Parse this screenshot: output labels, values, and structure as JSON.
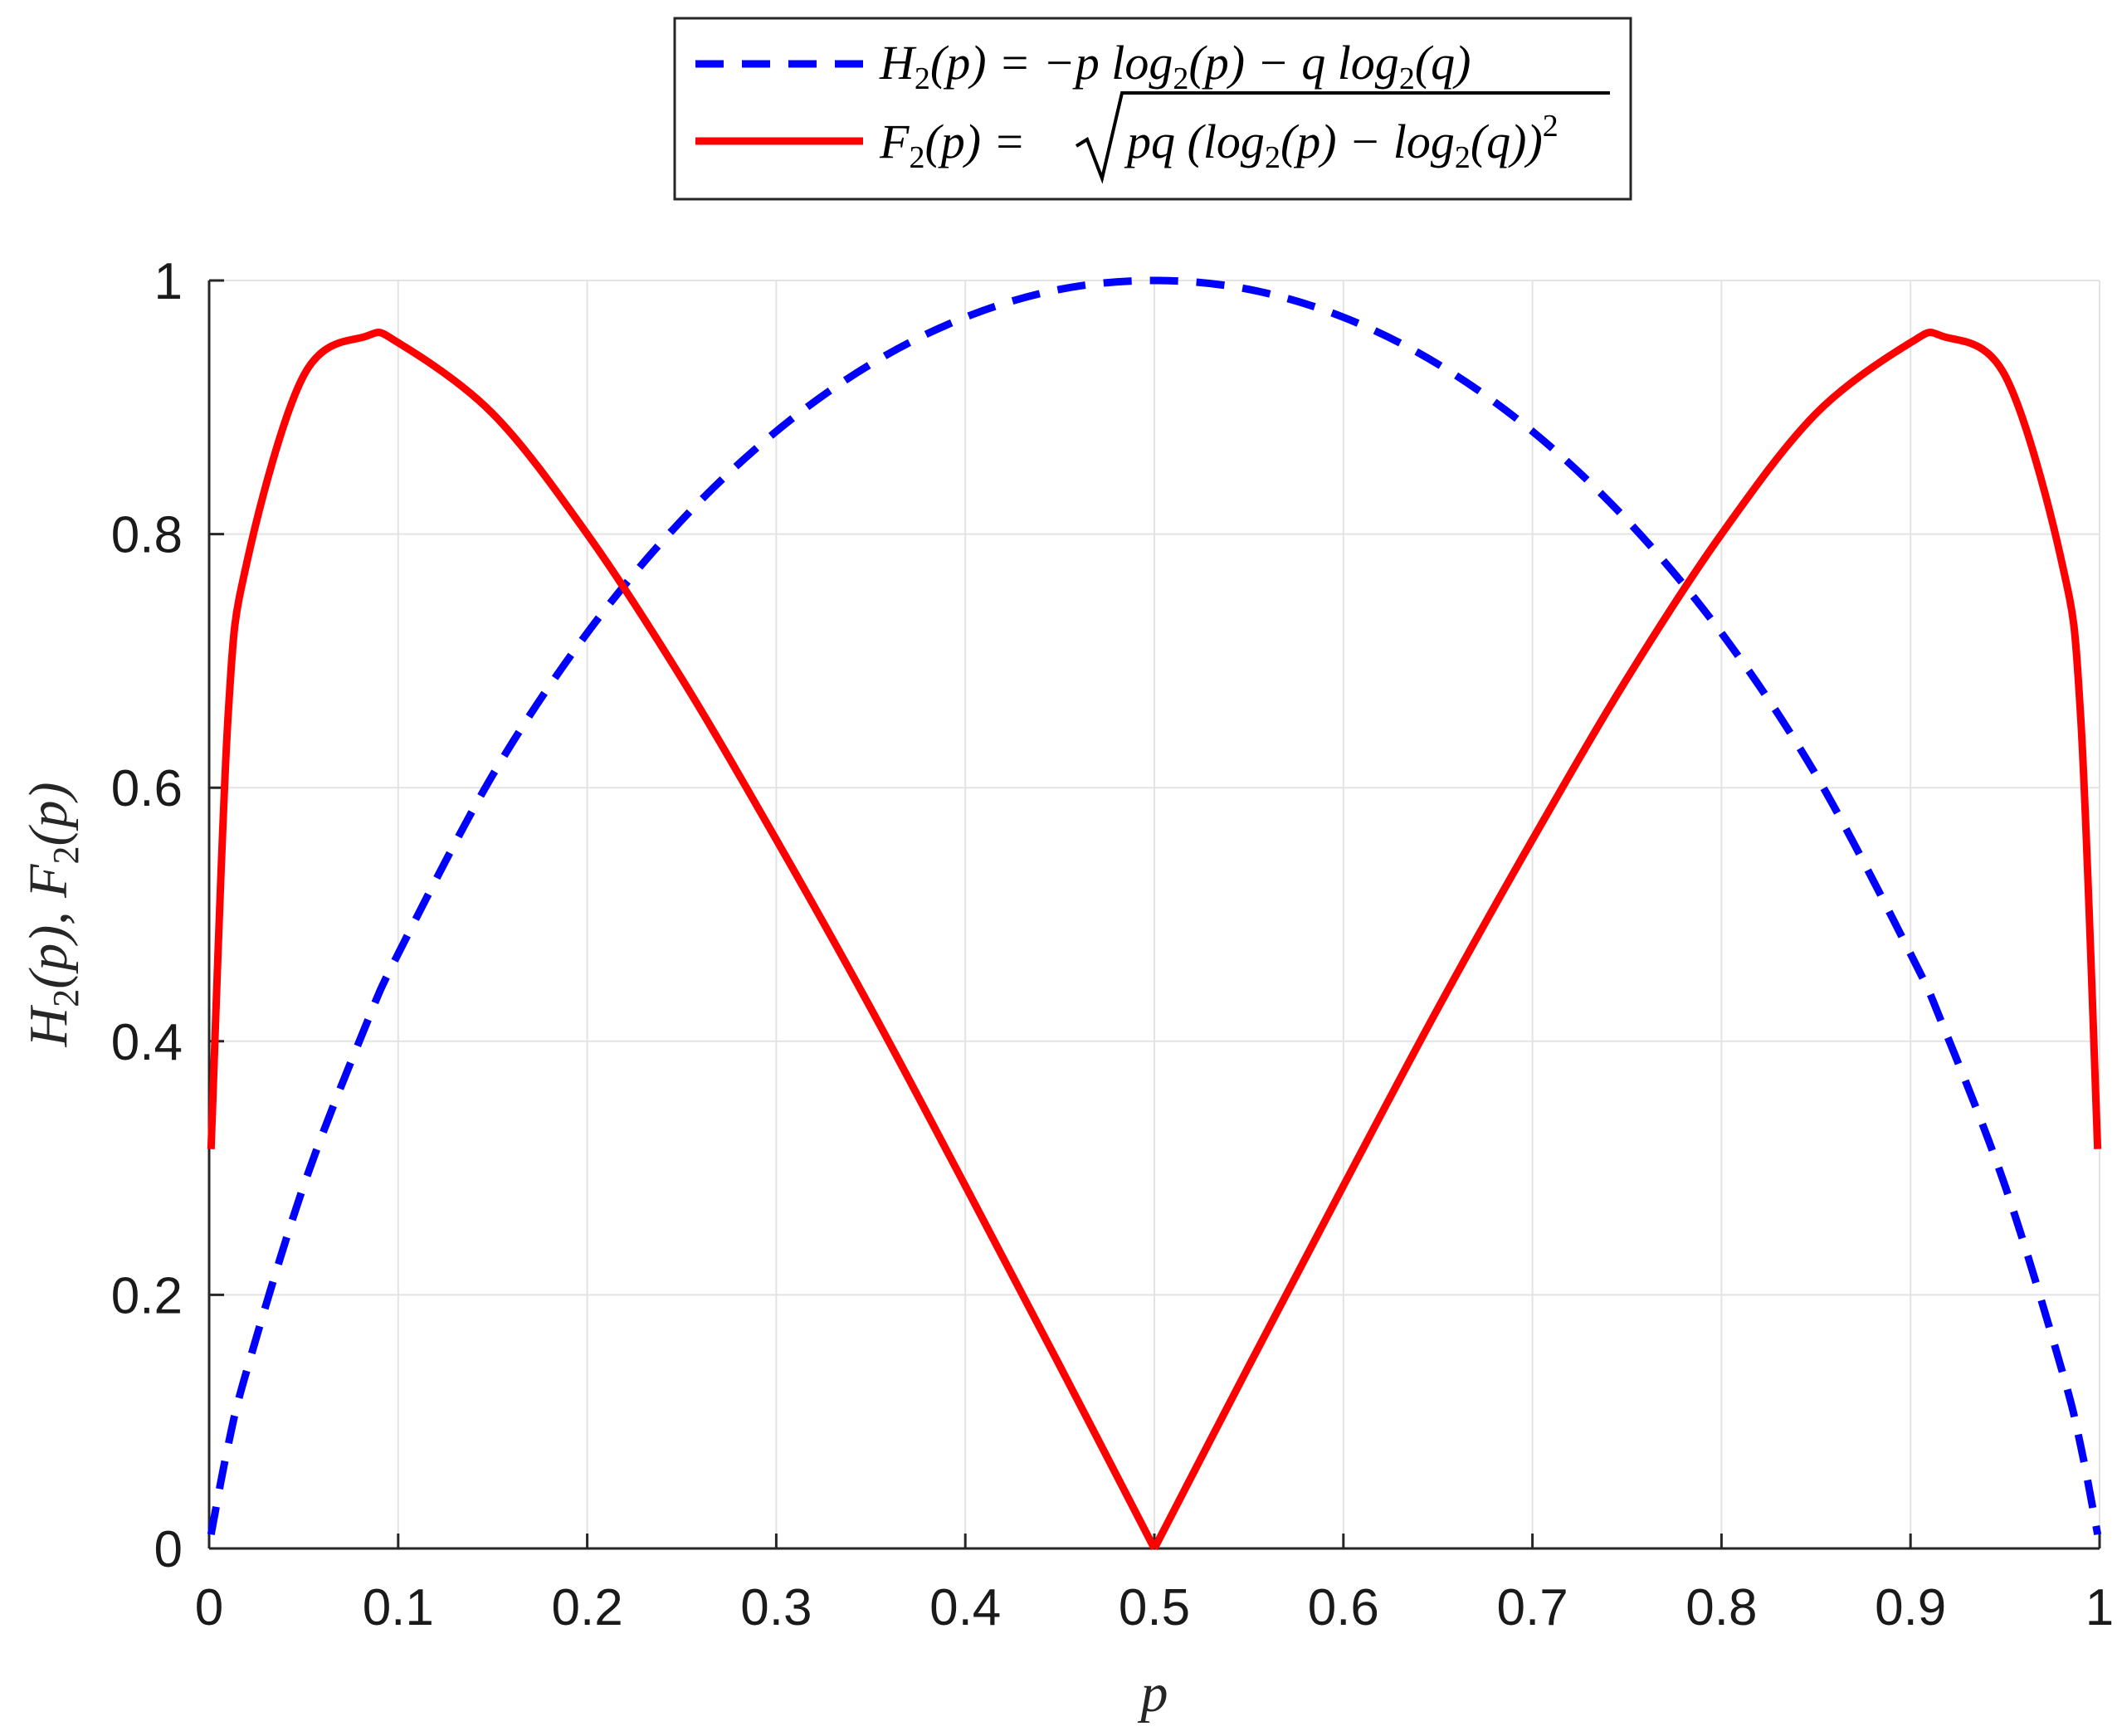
{
  "chart_data": {
    "type": "line",
    "xlabel": "p",
    "ylabel": "H2(p), F2(p)",
    "xlim": [
      0,
      1
    ],
    "ylim": [
      0,
      1
    ],
    "xticks": [
      0,
      0.1,
      0.2,
      0.3,
      0.4,
      0.5,
      0.6,
      0.7,
      0.8,
      0.9,
      1
    ],
    "yticks": [
      0,
      0.2,
      0.4,
      0.6,
      0.8,
      1
    ],
    "xtick_labels": [
      "0",
      "0.1",
      "0.2",
      "0.3",
      "0.4",
      "0.5",
      "0.6",
      "0.7",
      "0.8",
      "0.9",
      "1"
    ],
    "ytick_labels": [
      "0",
      "0.2",
      "0.4",
      "0.6",
      "0.8",
      "1"
    ],
    "grid": true,
    "legend_position": "top-center, outside the axes",
    "x": [
      0.001,
      0.01,
      0.02,
      0.05,
      0.083,
      0.1,
      0.15,
      0.2,
      0.25,
      0.3,
      0.35,
      0.4,
      0.45,
      0.5,
      0.55,
      0.6,
      0.65,
      0.7,
      0.75,
      0.8,
      0.85,
      0.9,
      0.917,
      0.95,
      0.98,
      0.99,
      0.999
    ],
    "series": [
      {
        "name": "H2(p) = -p log2(p) - q log2(q)",
        "color": "#0000ff",
        "line_style": "dashed",
        "values": [
          0.011,
          0.081,
          0.141,
          0.286,
          0.413,
          0.469,
          0.61,
          0.722,
          0.811,
          0.881,
          0.934,
          0.971,
          0.993,
          1.0,
          0.993,
          0.971,
          0.934,
          0.881,
          0.811,
          0.722,
          0.61,
          0.469,
          0.413,
          0.286,
          0.141,
          0.081,
          0.011
        ]
      },
      {
        "name": "F2(p) = sqrt(pq (log2(p) - log2(q))^2)",
        "color": "#ff0000",
        "line_style": "solid",
        "values": [
          0.315,
          0.656,
          0.778,
          0.925,
          0.956,
          0.951,
          0.895,
          0.8,
          0.686,
          0.559,
          0.426,
          0.286,
          0.144,
          0.0,
          0.144,
          0.286,
          0.426,
          0.559,
          0.686,
          0.8,
          0.895,
          0.951,
          0.956,
          0.925,
          0.778,
          0.656,
          0.315
        ]
      }
    ]
  }
}
